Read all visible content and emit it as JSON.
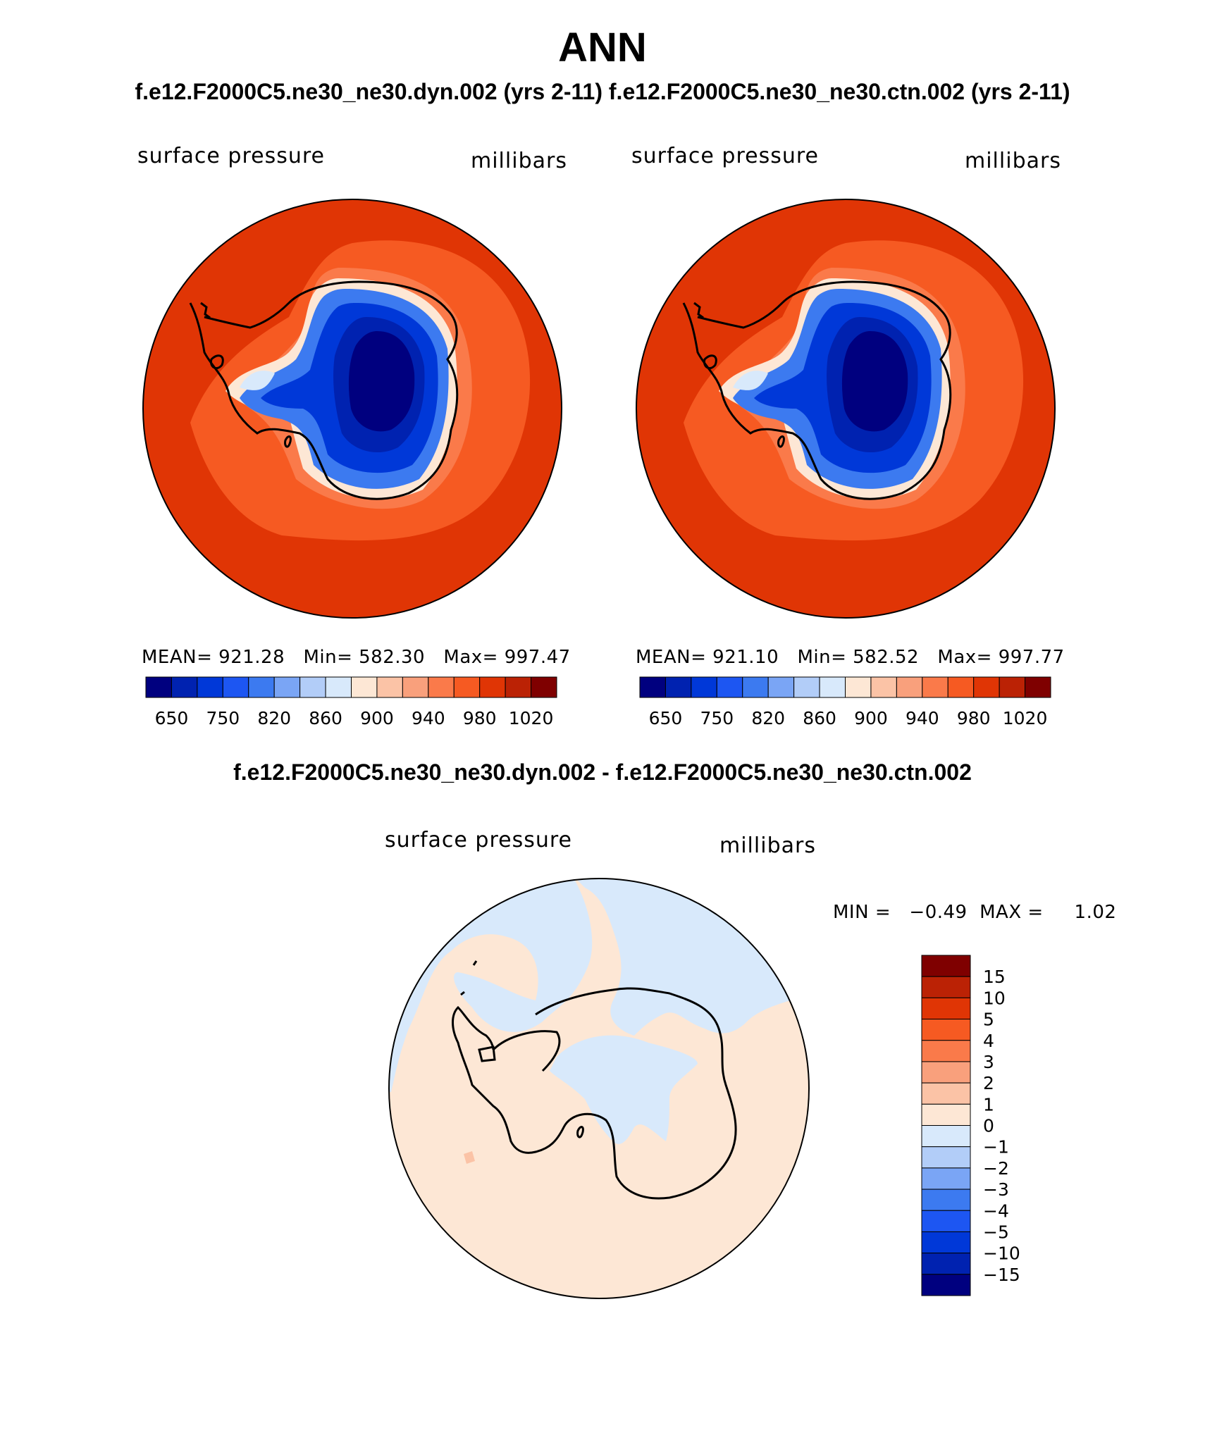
{
  "page": {
    "title": "ANN",
    "subtitle": "f.e12.F2000C5.ne30_ne30.dyn.002 (yrs 2-11)  f.e12.F2000C5.ne30_ne30.ctn.002 (yrs 2-11)",
    "diff_title": "f.e12.F2000C5.ne30_ne30.dyn.002 - f.e12.F2000C5.ne30_ne30.ctn.002"
  },
  "panels": [
    {
      "variable": "surface pressure",
      "units": "millibars",
      "stats": {
        "mean_label": "MEAN=",
        "mean": "921.28",
        "min_label": "Min=",
        "min": "582.30",
        "max_label": "Max=",
        "max": "997.47"
      }
    },
    {
      "variable": "surface pressure",
      "units": "millibars",
      "stats": {
        "mean_label": "MEAN=",
        "mean": "921.10",
        "min_label": "Min=",
        "min": "582.52",
        "max_label": "Max=",
        "max": "997.77"
      }
    }
  ],
  "diff_panel": {
    "variable": "surface pressure",
    "units": "millibars",
    "stats": {
      "min_label": "MIN =",
      "min": "−0.49",
      "max_label": "MAX =",
      "max": "1.02"
    }
  },
  "colorbar_main": {
    "labels": [
      "650",
      "750",
      "820",
      "860",
      "900",
      "940",
      "980",
      "1020"
    ],
    "colors": [
      "#00007f",
      "#0022b0",
      "#0038d8",
      "#1d56f2",
      "#3c7af0",
      "#7aa5f5",
      "#b2cdf8",
      "#d8e9fb",
      "#fde7d5",
      "#fbc3a6",
      "#f9a07c",
      "#fa7a4a",
      "#f65a22",
      "#e03505",
      "#bb2205",
      "#7f0000"
    ]
  },
  "colorbar_diff": {
    "labels": [
      "15",
      "10",
      "5",
      "4",
      "3",
      "2",
      "1",
      "0",
      "−1",
      "−2",
      "−3",
      "−4",
      "−5",
      "−10",
      "−15"
    ],
    "colors": [
      "#7f0000",
      "#bb2205",
      "#e03505",
      "#f65a22",
      "#fa7a4a",
      "#f9a07c",
      "#fbc3a6",
      "#fde7d5",
      "#d8e9fb",
      "#b2cdf8",
      "#7aa5f5",
      "#3c7af0",
      "#1d56f2",
      "#0038d8",
      "#0022b0",
      "#00007f"
    ]
  },
  "colors": {
    "ocean_high": "#e03505",
    "ring": "#f65a22",
    "coast_ring": "#fa7a4a",
    "diff_positive": "#fde7d5",
    "diff_negative": "#d8e9fb"
  }
}
